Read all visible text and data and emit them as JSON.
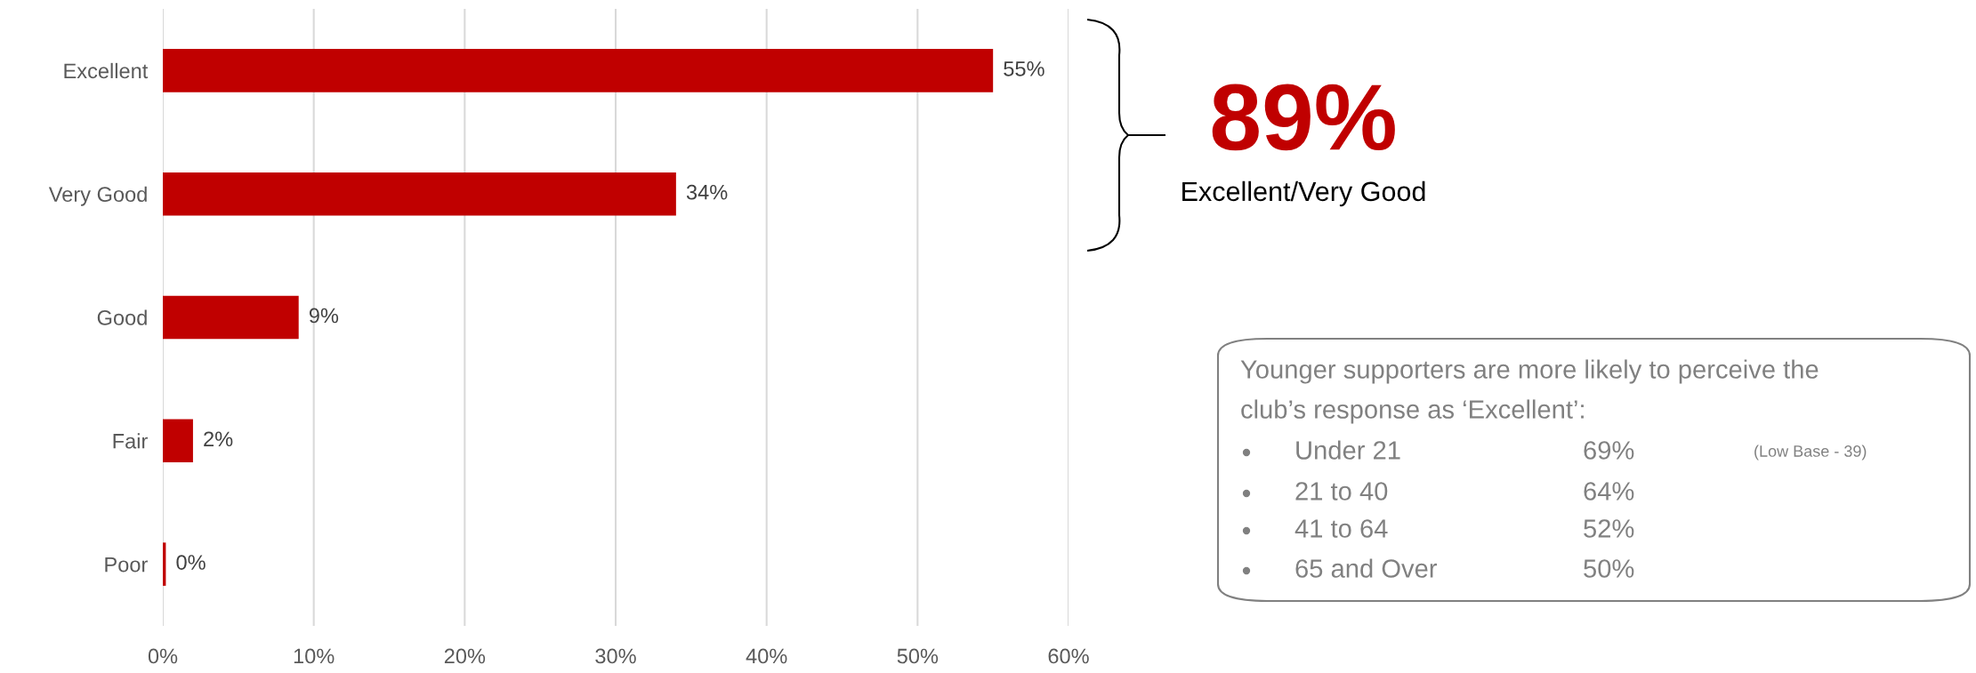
{
  "chart_data": {
    "type": "bar",
    "orientation": "horizontal",
    "categories": [
      "Excellent",
      "Very Good",
      "Good",
      "Fair",
      "Poor"
    ],
    "values": [
      55,
      34,
      9,
      2,
      0.2
    ],
    "value_labels": [
      "55%",
      "34%",
      "9%",
      "2%",
      "0%"
    ],
    "color": "#c00000",
    "xlim": [
      0,
      60
    ],
    "xticks": [
      {
        "value": 0,
        "label": "0%"
      },
      {
        "value": 10,
        "label": "10%"
      },
      {
        "value": 20,
        "label": "20%"
      },
      {
        "value": 30,
        "label": "30%"
      },
      {
        "value": 40,
        "label": "40%"
      },
      {
        "value": 50,
        "label": "50%"
      },
      {
        "value": 60,
        "label": "60%"
      }
    ],
    "grid": "x",
    "annotations": [
      "89%",
      "Excellent/Very Good",
      "Younger supporters are more likely to perceive the",
      "club’s response as ‘Excellent’:",
      "Under 21",
      "69%",
      "(Low Base - 39)",
      "21 to 40",
      "64%",
      "41 to 64",
      "52%",
      "65 and Over",
      "50%"
    ]
  }
}
